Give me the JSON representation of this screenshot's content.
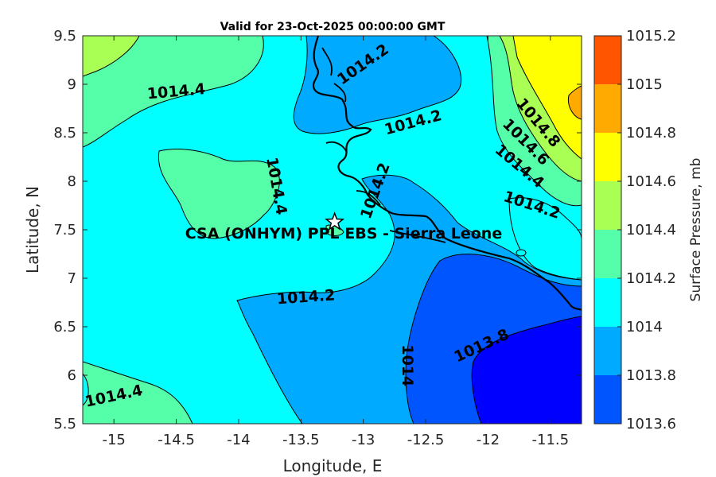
{
  "title": "Valid for 23-Oct-2025 00:00:00 GMT",
  "site_label": "CSA (ONHYM) PPL EBS  - Sierra Leone",
  "xlabel": "Longitude, E",
  "ylabel": "Latitude, N",
  "colorbar_label": "Surface Pressure, mb",
  "chart_data": {
    "type": "heatmap",
    "title": "Valid for 23-Oct-2025 00:00:00 GMT",
    "xlabel": "Longitude, E",
    "ylabel": "Latitude, N",
    "xlim": [
      -15.25,
      -11.25
    ],
    "ylim": [
      5.5,
      9.5
    ],
    "x_ticks": [
      "-15",
      "-14.5",
      "-14",
      "-13.5",
      "-13",
      "-12.5",
      "-12",
      "-11.5"
    ],
    "x_tick_values": [
      -15,
      -14.5,
      -14,
      -13.5,
      -13,
      -12.5,
      -12,
      -11.5
    ],
    "y_ticks": [
      "9.5",
      "9",
      "8.5",
      "8",
      "7.5",
      "7",
      "6.5",
      "6",
      "5.5"
    ],
    "y_tick_values": [
      9.5,
      9,
      8.5,
      8,
      7.5,
      7,
      6.5,
      6,
      5.5
    ],
    "colorbar": {
      "label": "Surface Pressure, mb",
      "levels": [
        {
          "value": "1015.2",
          "color": "#ff5500"
        },
        {
          "value": "1015",
          "color": "#ffaa00"
        },
        {
          "value": "1014.8",
          "color": "#ffff00"
        },
        {
          "value": "1014.6",
          "color": "#aaff55"
        },
        {
          "value": "1014.4",
          "color": "#55ffaa"
        },
        {
          "value": "1014.2",
          "color": "#00ffff"
        },
        {
          "value": "1014",
          "color": "#00aaff"
        },
        {
          "value": "1013.8",
          "color": "#0055ff"
        },
        {
          "value": "1013.6",
          "color": "#0000ff"
        }
      ]
    },
    "contour_labels": [
      {
        "text": "1014.2",
        "lon": -13.0,
        "lat": 9.2,
        "angle": -35
      },
      {
        "text": "1014.4",
        "lon": -14.5,
        "lat": 8.92,
        "angle": -5
      },
      {
        "text": "1014.2",
        "lon": -12.6,
        "lat": 8.6,
        "angle": -15
      },
      {
        "text": "1014.8",
        "lon": -11.6,
        "lat": 8.6,
        "angle": 50
      },
      {
        "text": "1014.6",
        "lon": -11.7,
        "lat": 8.4,
        "angle": 45
      },
      {
        "text": "1014.4",
        "lon": -11.75,
        "lat": 8.15,
        "angle": 40
      },
      {
        "text": "1014.4",
        "lon": -13.7,
        "lat": 7.95,
        "angle": 80
      },
      {
        "text": "1014.2",
        "lon": -12.9,
        "lat": 7.9,
        "angle": -70
      },
      {
        "text": "1014.2",
        "lon": -11.65,
        "lat": 7.75,
        "angle": 18
      },
      {
        "text": "1014.2",
        "lon": -13.46,
        "lat": 6.8,
        "angle": -4
      },
      {
        "text": "1014",
        "lon": -12.65,
        "lat": 6.1,
        "angle": 90
      },
      {
        "text": "1013.8",
        "lon": -12.05,
        "lat": 6.3,
        "angle": -25
      },
      {
        "text": "1014.4",
        "lon": -15.0,
        "lat": 5.78,
        "angle": -12
      }
    ],
    "site": {
      "name": "CSA (ONHYM) PPL EBS  - Sierra Leone",
      "lon": -13.23,
      "lat": 7.58
    }
  }
}
